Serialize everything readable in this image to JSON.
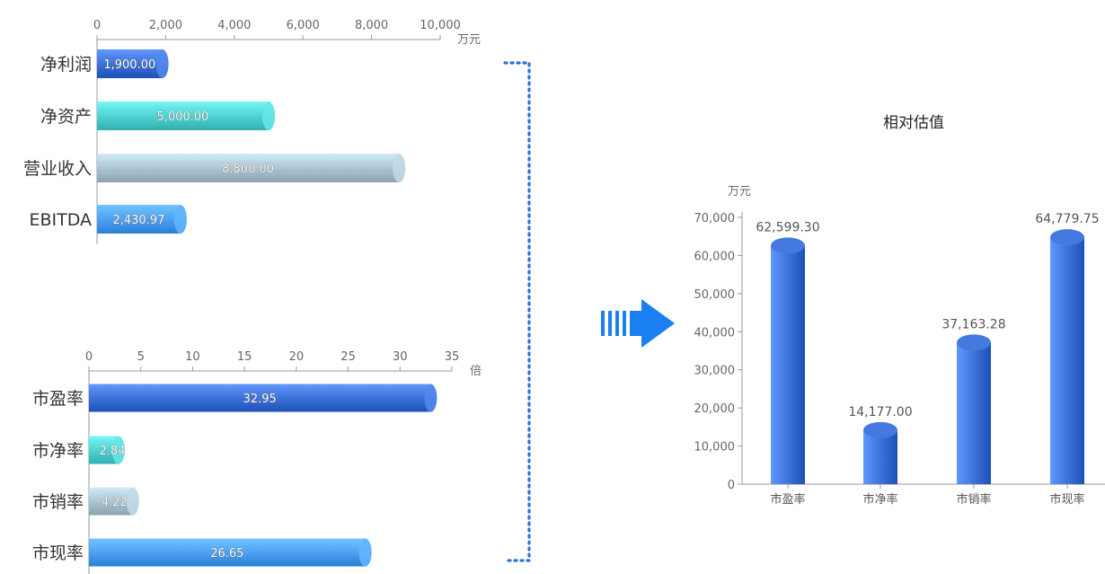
{
  "chart_data": [
    {
      "id": "financials",
      "type": "bar",
      "orientation": "horizontal",
      "unit": "万元",
      "categories": [
        "净利润",
        "净资产",
        "营业收入",
        "EBITDA"
      ],
      "values": [
        1900.0,
        5000.0,
        8800.0,
        2430.97
      ],
      "value_labels": [
        "1,900.00",
        "5,000.00",
        "8,800.00",
        "2,430.97"
      ],
      "colors": [
        "#3a6fd6",
        "#4ecfcf",
        "#a9c2cf",
        "#4a9df0"
      ],
      "xlim": [
        0,
        10000
      ],
      "ticks": [
        0,
        2000,
        4000,
        6000,
        8000,
        10000
      ],
      "tick_labels": [
        "0",
        "2,000",
        "4,000",
        "6,000",
        "8,000",
        "10,000"
      ],
      "grid": false
    },
    {
      "id": "multiples",
      "type": "bar",
      "orientation": "horizontal",
      "unit": "倍",
      "categories": [
        "市盈率",
        "市净率",
        "市销率",
        "市现率"
      ],
      "values": [
        32.95,
        2.84,
        4.22,
        26.65
      ],
      "value_labels": [
        "32.95",
        "2.84",
        "4.22",
        "26.65"
      ],
      "colors": [
        "#3a6fd6",
        "#4ecfcf",
        "#a9c2cf",
        "#4a9df0"
      ],
      "xlim": [
        0,
        35
      ],
      "ticks": [
        0,
        5,
        10,
        15,
        20,
        25,
        30,
        35
      ],
      "tick_labels": [
        "0",
        "5",
        "10",
        "15",
        "20",
        "25",
        "30",
        "35"
      ],
      "grid": false
    },
    {
      "id": "valuation",
      "type": "bar",
      "orientation": "vertical",
      "title": "相对估值",
      "unit": "万元",
      "categories": [
        "市盈率",
        "市净率",
        "市销率",
        "市现率"
      ],
      "values": [
        62599.3,
        14177.0,
        37163.28,
        64779.75
      ],
      "value_labels": [
        "62,599.30",
        "14,177.00",
        "37,163.28",
        "64,779.75"
      ],
      "color": "#3a6fd6",
      "ylim": [
        0,
        70000
      ],
      "ticks": [
        0,
        10000,
        20000,
        30000,
        40000,
        50000,
        60000,
        70000
      ],
      "tick_labels": [
        "0",
        "10,000",
        "20,000",
        "30,000",
        "40,000",
        "50,000",
        "60,000",
        "70,000"
      ],
      "grid": false
    }
  ],
  "colors": {
    "connector": "#2f6fe0",
    "arrow": "#1a7ff0"
  }
}
